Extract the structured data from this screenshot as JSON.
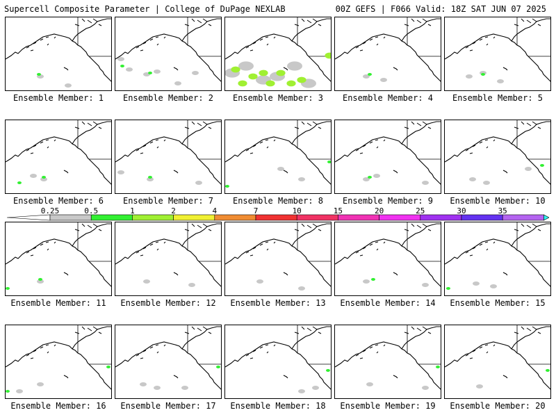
{
  "header": {
    "left_title": "Supercell Composite Parameter | College of DuPage NEXLAB",
    "right_title": "00Z GEFS | F066 Valid: 18Z SAT JUN 07 2025"
  },
  "colorbar": {
    "labels": [
      "0.25",
      "0.5",
      "1",
      "2",
      "4",
      "7",
      "10",
      "15",
      "20",
      "25",
      "30",
      "35"
    ],
    "colors": [
      "#c8c8c8",
      "#32f032",
      "#a0f032",
      "#f0f032",
      "#f08c32",
      "#f03232",
      "#f03264",
      "#f032b4",
      "#f032f0",
      "#a032f0",
      "#6432f0",
      "#b464f0",
      "#32f0f0"
    ]
  },
  "members": [
    {
      "label": "Ensemble Member: 1",
      "gray": [
        [
          50,
          85
        ],
        [
          90,
          98
        ]
      ],
      "green": [
        [
          48,
          82
        ]
      ]
    },
    {
      "label": "Ensemble Member: 2",
      "gray": [
        [
          8,
          60
        ],
        [
          20,
          75
        ],
        [
          45,
          82
        ],
        [
          60,
          78
        ],
        [
          90,
          95
        ],
        [
          115,
          80
        ]
      ],
      "green": [
        [
          10,
          70
        ],
        [
          50,
          80
        ]
      ]
    },
    {
      "label": "Ensemble Member: 3",
      "gray": [
        [
          10,
          80
        ],
        [
          30,
          70
        ],
        [
          55,
          90
        ],
        [
          75,
          85
        ],
        [
          100,
          70
        ],
        [
          120,
          95
        ]
      ],
      "green": [
        [
          15,
          75
        ],
        [
          25,
          95
        ],
        [
          40,
          85
        ],
        [
          55,
          80
        ],
        [
          65,
          95
        ],
        [
          80,
          80
        ],
        [
          95,
          95
        ],
        [
          110,
          90
        ],
        [
          150,
          55
        ]
      ],
      "big": true
    },
    {
      "label": "Ensemble Member: 4",
      "gray": [
        [
          45,
          85
        ],
        [
          70,
          90
        ]
      ],
      "green": [
        [
          50,
          82
        ]
      ]
    },
    {
      "label": "Ensemble Member: 5",
      "gray": [
        [
          35,
          85
        ],
        [
          55,
          80
        ],
        [
          80,
          92
        ]
      ],
      "green": [
        [
          55,
          82
        ]
      ]
    },
    {
      "label": "Ensemble Member: 6",
      "gray": [
        [
          40,
          80
        ],
        [
          55,
          85
        ]
      ],
      "green": [
        [
          20,
          90
        ],
        [
          55,
          82
        ]
      ]
    },
    {
      "label": "Ensemble Member: 7",
      "gray": [
        [
          8,
          75
        ],
        [
          50,
          85
        ],
        [
          120,
          90
        ]
      ],
      "green": [
        [
          50,
          82
        ]
      ]
    },
    {
      "label": "Ensemble Member: 8",
      "gray": [
        [
          80,
          70
        ],
        [
          110,
          85
        ]
      ],
      "green": [
        [
          3,
          95
        ],
        [
          150,
          60
        ]
      ]
    },
    {
      "label": "Ensemble Member: 9",
      "gray": [
        [
          45,
          85
        ],
        [
          60,
          80
        ],
        [
          130,
          90
        ]
      ],
      "green": [
        [
          50,
          82
        ]
      ]
    },
    {
      "label": "Ensemble Member: 10",
      "gray": [
        [
          40,
          85
        ],
        [
          60,
          90
        ],
        [
          120,
          70
        ]
      ],
      "green": [
        [
          140,
          65
        ]
      ]
    },
    {
      "label": "Ensemble Member: 11",
      "gray": [
        [
          50,
          85
        ]
      ],
      "green": [
        [
          3,
          95
        ],
        [
          50,
          82
        ]
      ]
    },
    {
      "label": "Ensemble Member: 12",
      "gray": [
        [
          45,
          85
        ],
        [
          110,
          90
        ]
      ],
      "green": []
    },
    {
      "label": "Ensemble Member: 13",
      "gray": [
        [
          50,
          85
        ],
        [
          110,
          95
        ]
      ],
      "green": []
    },
    {
      "label": "Ensemble Member: 14",
      "gray": [
        [
          45,
          85
        ],
        [
          130,
          90
        ]
      ],
      "green": [
        [
          55,
          82
        ]
      ]
    },
    {
      "label": "Ensemble Member: 15",
      "gray": [
        [
          45,
          88
        ],
        [
          70,
          92
        ]
      ],
      "green": [
        [
          5,
          95
        ]
      ]
    },
    {
      "label": "Ensemble Member: 16",
      "gray": [
        [
          20,
          95
        ],
        [
          50,
          85
        ]
      ],
      "green": [
        [
          3,
          95
        ],
        [
          148,
          60
        ]
      ]
    },
    {
      "label": "Ensemble Member: 17",
      "gray": [
        [
          40,
          85
        ],
        [
          60,
          90
        ],
        [
          100,
          90
        ]
      ],
      "green": [
        [
          148,
          60
        ]
      ]
    },
    {
      "label": "Ensemble Member: 18",
      "gray": [
        [
          110,
          95
        ],
        [
          130,
          90
        ]
      ],
      "green": [
        [
          148,
          65
        ]
      ]
    },
    {
      "label": "Ensemble Member: 19",
      "gray": [
        [
          50,
          85
        ],
        [
          130,
          90
        ]
      ],
      "green": [
        [
          148,
          60
        ]
      ]
    },
    {
      "label": "Ensemble Member: 20",
      "gray": [
        [
          50,
          88
        ]
      ],
      "green": [
        [
          148,
          65
        ]
      ]
    }
  ]
}
